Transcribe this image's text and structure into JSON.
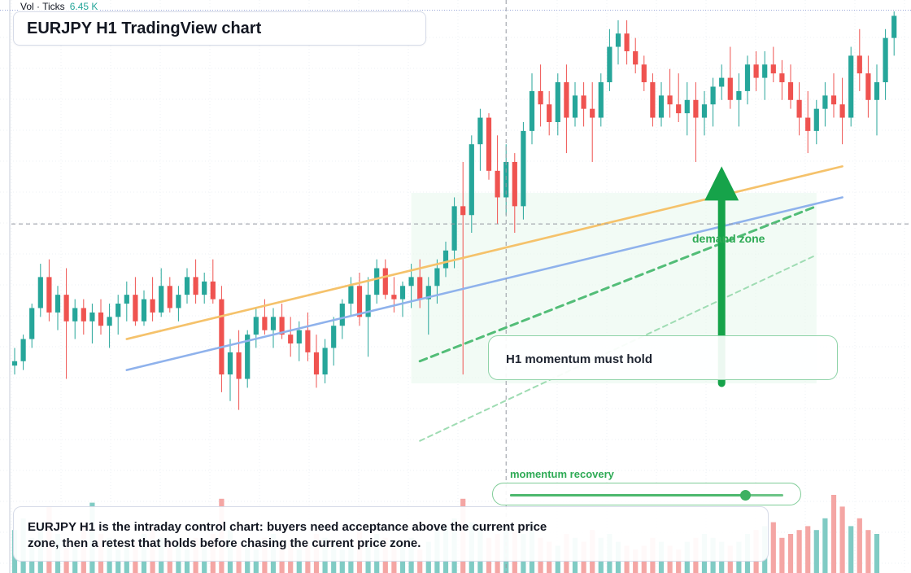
{
  "header": {
    "title": "EURJPY H1 TradingView chart"
  },
  "volume_legend": {
    "label": "Vol · Ticks",
    "value": "6.45 K"
  },
  "annotations": {
    "callout": "H1 momentum must hold",
    "demand_zone": "demand zone",
    "momentum_recovery": {
      "label": "momentum recovery",
      "level": 0.86
    },
    "summary": "EURJPY H1 is the intraday control chart: buyers need acceptance above the current price zone, then a retest that holds before chasing the current price zone."
  },
  "colors": {
    "up": "#26a69a",
    "down": "#ef5350",
    "vol_up": "#80cbc4",
    "vol_down": "#f4a6a4",
    "ma_fast": "#f5c26b",
    "ma_slow": "#8fb2ec",
    "accent": "#16a34a",
    "zone": "#e8f7ec"
  },
  "chart_data": {
    "type": "candlestick",
    "price_range": [
      0,
      100
    ],
    "crosshair": {
      "bar": 57,
      "price": 52
    },
    "moving_averages": [
      {
        "color_key": "ma_fast",
        "from": {
          "bar": 13,
          "price": 26
        },
        "to": {
          "bar": 96,
          "price": 65
        }
      },
      {
        "color_key": "ma_slow",
        "from": {
          "bar": 13,
          "price": 19
        },
        "to": {
          "bar": 96,
          "price": 58
        }
      }
    ],
    "trend_lines": [
      {
        "style": "dashed",
        "from": {
          "bar": 47,
          "price": 21
        },
        "to": {
          "bar": 93,
          "price": 56
        }
      },
      {
        "style": "dashed-light",
        "from": {
          "bar": 47,
          "price": 3
        },
        "to": {
          "bar": 93,
          "price": 45
        }
      }
    ],
    "demand_zone": {
      "from_bar": 46,
      "to_bar": 93,
      "price_low": 16,
      "price_high": 59
    },
    "target_arrow": {
      "bar": 82,
      "from_price": 16,
      "to_price": 65
    },
    "ohlc": [
      [
        20,
        24,
        18,
        21
      ],
      [
        21,
        27,
        19,
        26
      ],
      [
        26,
        34,
        24,
        33
      ],
      [
        33,
        43,
        31,
        40
      ],
      [
        40,
        44,
        30,
        32
      ],
      [
        32,
        38,
        28,
        36
      ],
      [
        36,
        42,
        17,
        30
      ],
      [
        30,
        35,
        26,
        33
      ],
      [
        33,
        35,
        27,
        30
      ],
      [
        30,
        34,
        25,
        32
      ],
      [
        32,
        35,
        27,
        29
      ],
      [
        29,
        34,
        24,
        31
      ],
      [
        31,
        36,
        27,
        34
      ],
      [
        34,
        39,
        30,
        36
      ],
      [
        36,
        40,
        29,
        30
      ],
      [
        30,
        37,
        29,
        35
      ],
      [
        35,
        40,
        30,
        32
      ],
      [
        32,
        42,
        31,
        38
      ],
      [
        38,
        40,
        32,
        33
      ],
      [
        33,
        38,
        30,
        36
      ],
      [
        36,
        42,
        34,
        40
      ],
      [
        40,
        44,
        34,
        36
      ],
      [
        36,
        41,
        34,
        39
      ],
      [
        39,
        44,
        34,
        35
      ],
      [
        35,
        38,
        14,
        18
      ],
      [
        18,
        26,
        12,
        23
      ],
      [
        23,
        28,
        10,
        17
      ],
      [
        17,
        28,
        15,
        27
      ],
      [
        27,
        33,
        24,
        31
      ],
      [
        31,
        35,
        27,
        28
      ],
      [
        28,
        33,
        24,
        31
      ],
      [
        31,
        34,
        26,
        27
      ],
      [
        27,
        31,
        22,
        25
      ],
      [
        25,
        30,
        21,
        28
      ],
      [
        28,
        32,
        21,
        23
      ],
      [
        23,
        27,
        15,
        18
      ],
      [
        18,
        26,
        16,
        24
      ],
      [
        24,
        31,
        20,
        29
      ],
      [
        29,
        35,
        26,
        34
      ],
      [
        34,
        40,
        31,
        38
      ],
      [
        38,
        41,
        29,
        31
      ],
      [
        31,
        40,
        22,
        36
      ],
      [
        36,
        44,
        34,
        42
      ],
      [
        42,
        44,
        35,
        36
      ],
      [
        36,
        40,
        32,
        35
      ],
      [
        35,
        39,
        31,
        38
      ],
      [
        38,
        43,
        33,
        40
      ],
      [
        40,
        44,
        33,
        35
      ],
      [
        35,
        40,
        27,
        38
      ],
      [
        38,
        44,
        34,
        42
      ],
      [
        42,
        48,
        40,
        46
      ],
      [
        46,
        58,
        42,
        56
      ],
      [
        56,
        66,
        18,
        54
      ],
      [
        54,
        72,
        50,
        70
      ],
      [
        70,
        78,
        64,
        76
      ],
      [
        76,
        77,
        62,
        64
      ],
      [
        64,
        72,
        52,
        58
      ],
      [
        58,
        70,
        54,
        66
      ],
      [
        66,
        68,
        50,
        56
      ],
      [
        56,
        75,
        53,
        73
      ],
      [
        73,
        86,
        70,
        82
      ],
      [
        82,
        88,
        74,
        79
      ],
      [
        79,
        82,
        72,
        75
      ],
      [
        75,
        86,
        72,
        84
      ],
      [
        84,
        88,
        68,
        76
      ],
      [
        76,
        84,
        74,
        81
      ],
      [
        81,
        84,
        74,
        78
      ],
      [
        78,
        84,
        66,
        76
      ],
      [
        76,
        86,
        74,
        84
      ],
      [
        84,
        96,
        82,
        92
      ],
      [
        92,
        98,
        88,
        95
      ],
      [
        95,
        98,
        88,
        91
      ],
      [
        91,
        94,
        86,
        88
      ],
      [
        88,
        90,
        82,
        84
      ],
      [
        84,
        86,
        74,
        76
      ],
      [
        76,
        84,
        74,
        81
      ],
      [
        81,
        87,
        76,
        79
      ],
      [
        79,
        86,
        75,
        77
      ],
      [
        77,
        84,
        72,
        80
      ],
      [
        80,
        84,
        66,
        76
      ],
      [
        76,
        82,
        72,
        79
      ],
      [
        79,
        85,
        74,
        83
      ],
      [
        83,
        88,
        80,
        85
      ],
      [
        85,
        92,
        78,
        80
      ],
      [
        80,
        86,
        74,
        82
      ],
      [
        82,
        90,
        79,
        88
      ],
      [
        88,
        91,
        82,
        85
      ],
      [
        85,
        91,
        80,
        88
      ],
      [
        88,
        92,
        84,
        86
      ],
      [
        86,
        89,
        80,
        84
      ],
      [
        84,
        88,
        78,
        80
      ],
      [
        80,
        84,
        72,
        76
      ],
      [
        76,
        82,
        68,
        73
      ],
      [
        73,
        80,
        70,
        78
      ],
      [
        78,
        84,
        74,
        81
      ],
      [
        81,
        86,
        76,
        79
      ],
      [
        79,
        85,
        70,
        76
      ],
      [
        76,
        92,
        74,
        90
      ],
      [
        90,
        96,
        82,
        86
      ],
      [
        86,
        90,
        76,
        80
      ],
      [
        80,
        88,
        72,
        84
      ],
      [
        84,
        96,
        80,
        94
      ],
      [
        94,
        100,
        90,
        99
      ]
    ],
    "volume": [
      0.55,
      0.7,
      0.45,
      0.6,
      0.85,
      0.5,
      0.4,
      0.35,
      0.6,
      0.9,
      0.5,
      0.45,
      0.3,
      0.35,
      0.4,
      0.5,
      0.6,
      0.45,
      0.4,
      0.35,
      0.3,
      0.45,
      0.4,
      0.5,
      0.95,
      0.55,
      0.35,
      0.4,
      0.3,
      0.45,
      0.5,
      0.35,
      0.4,
      0.3,
      0.35,
      0.5,
      0.45,
      0.4,
      0.3,
      0.35,
      0.6,
      0.4,
      0.5,
      0.45,
      0.35,
      0.4,
      0.45,
      0.3,
      0.4,
      0.55,
      0.6,
      0.7,
      0.95,
      0.65,
      0.55,
      0.45,
      0.5,
      0.6,
      0.55,
      0.5,
      0.65,
      0.45,
      0.4,
      0.35,
      0.5,
      0.45,
      0.4,
      0.55,
      0.45,
      0.5,
      0.4,
      0.35,
      0.3,
      0.35,
      0.45,
      0.4,
      0.35,
      0.3,
      0.4,
      0.45,
      0.5,
      0.45,
      0.4,
      0.35,
      0.4,
      0.5,
      0.55,
      0.6,
      0.65,
      0.45,
      0.5,
      0.55,
      0.6,
      0.55,
      0.7,
      1.0,
      0.85,
      0.6,
      0.7,
      0.55,
      0.5
    ]
  }
}
